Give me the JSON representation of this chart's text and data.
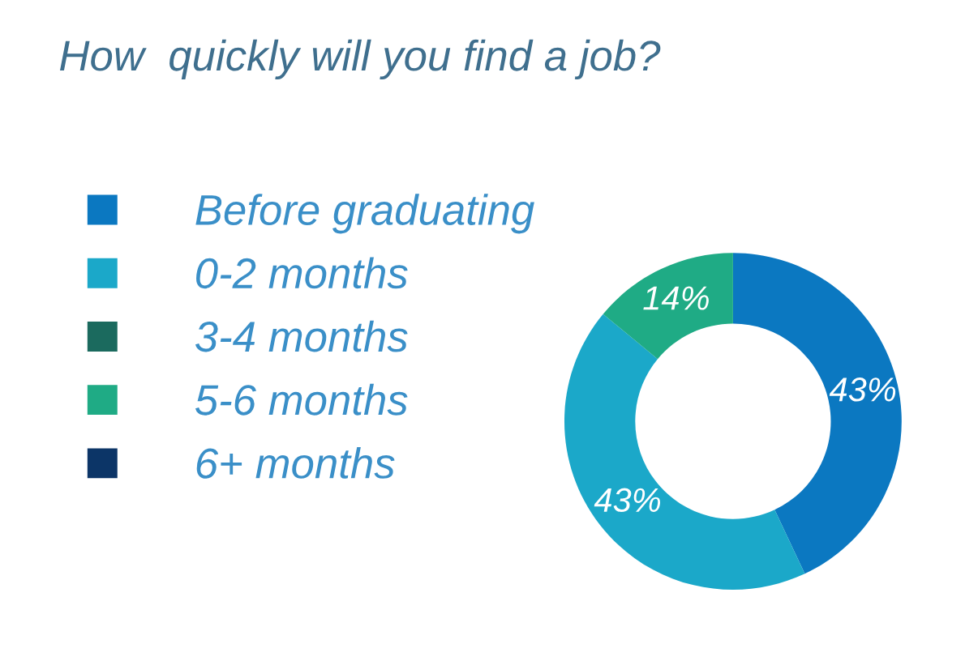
{
  "chart_data": {
    "type": "donut",
    "title": "How  quickly will you find a job?",
    "categories": [
      "Before graduating",
      "0-2 months",
      "3-4 months",
      "5-6 months",
      "6+ months"
    ],
    "values": [
      43,
      43,
      0,
      14,
      0
    ],
    "colors": [
      "#0b78c1",
      "#1ba8c9",
      "#1b6a5e",
      "#1fab85",
      "#0c3567"
    ],
    "value_labels": [
      "43%",
      "43%",
      null,
      "14%",
      null
    ],
    "legend": "left"
  }
}
